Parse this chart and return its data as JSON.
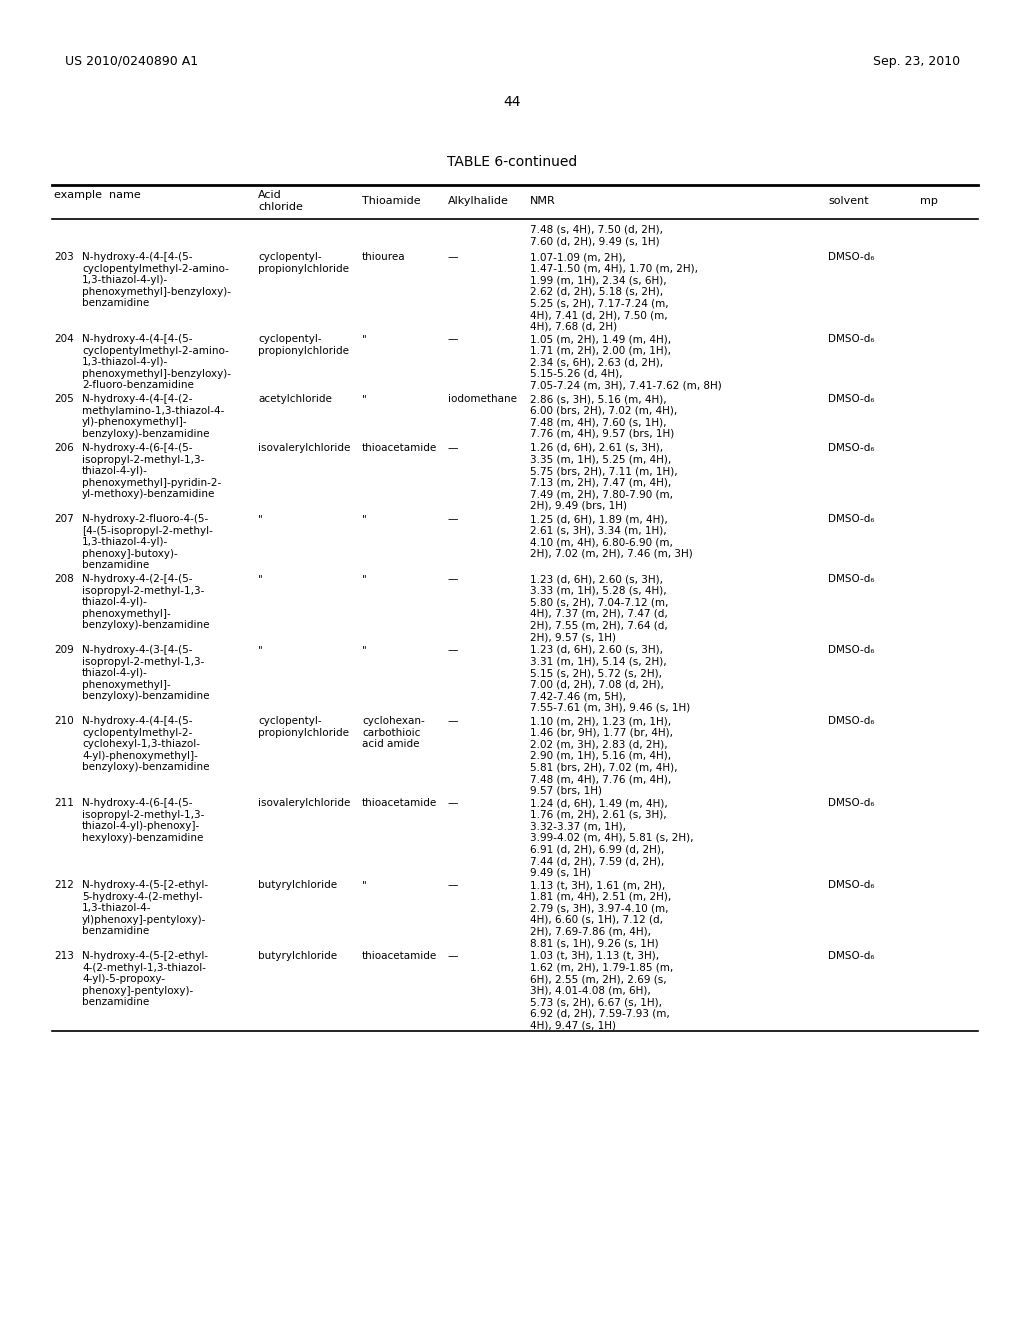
{
  "header_left": "US 2010/0240890 A1",
  "header_right": "Sep. 23, 2010",
  "page_number": "44",
  "table_title": "TABLE 6-continued",
  "bg_color": "#ffffff",
  "text_color": "#000000",
  "rows": [
    {
      "num": "",
      "name": "",
      "acid_chloride": "",
      "thioamide": "",
      "alkylhalide": "",
      "nmr": "7.48 (s, 4H), 7.50 (d, 2H),\n7.60 (d, 2H), 9.49 (s, 1H)",
      "solvent": "",
      "mp": ""
    },
    {
      "num": "203",
      "name": "N-hydroxy-4-(4-[4-(5-\ncyclopentylmethyl-2-amino-\n1,3-thiazol-4-yl)-\nphenoxymethyl]-benzyloxy)-\nbenzamidine",
      "acid_chloride": "cyclopentyl-\npropionylchloride",
      "thioamide": "thiourea",
      "alkylhalide": "—",
      "nmr": "1.07-1.09 (m, 2H),\n1.47-1.50 (m, 4H), 1.70 (m, 2H),\n1.99 (m, 1H), 2.34 (s, 6H),\n2.62 (d, 2H), 5.18 (s, 2H),\n5.25 (s, 2H), 7.17-7.24 (m,\n4H), 7.41 (d, 2H), 7.50 (m,\n4H), 7.68 (d, 2H)",
      "solvent": "DMSO-d₆",
      "mp": ""
    },
    {
      "num": "204",
      "name": "N-hydroxy-4-(4-[4-(5-\ncyclopentylmethyl-2-amino-\n1,3-thiazol-4-yl)-\nphenoxymethyl]-benzyloxy)-\n2-fluoro-benzamidine",
      "acid_chloride": "cyclopentyl-\npropionylchloride",
      "thioamide": "\"",
      "alkylhalide": "—",
      "nmr": "1.05 (m, 2H), 1.49 (m, 4H),\n1.71 (m, 2H), 2.00 (m, 1H),\n2.34 (s, 6H), 2.63 (d, 2H),\n5.15-5.26 (d, 4H),\n7.05-7.24 (m, 3H), 7.41-7.62 (m, 8H)",
      "solvent": "DMSO-d₆",
      "mp": ""
    },
    {
      "num": "205",
      "name": "N-hydroxy-4-(4-[4-(2-\nmethylamino-1,3-thiazol-4-\nyl)-phenoxymethyl]-\nbenzyloxy)-benzamidine",
      "acid_chloride": "acetylchloride",
      "thioamide": "\"",
      "alkylhalide": "iodomethane",
      "nmr": "2.86 (s, 3H), 5.16 (m, 4H),\n6.00 (brs, 2H), 7.02 (m, 4H),\n7.48 (m, 4H), 7.60 (s, 1H),\n7.76 (m, 4H), 9.57 (brs, 1H)",
      "solvent": "DMSO-d₆",
      "mp": ""
    },
    {
      "num": "206",
      "name": "N-hydroxy-4-(6-[4-(5-\nisopropyl-2-methyl-1,3-\nthiazol-4-yl)-\nphenoxymethyl]-pyridin-2-\nyl-methoxy)-benzamidine",
      "acid_chloride": "isovalerylchloride",
      "thioamide": "thioacetamide",
      "alkylhalide": "—",
      "nmr": "1.26 (d, 6H), 2.61 (s, 3H),\n3.35 (m, 1H), 5.25 (m, 4H),\n5.75 (brs, 2H), 7.11 (m, 1H),\n7.13 (m, 2H), 7.47 (m, 4H),\n7.49 (m, 2H), 7.80-7.90 (m,\n2H), 9.49 (brs, 1H)",
      "solvent": "DMSO-d₆",
      "mp": ""
    },
    {
      "num": "207",
      "name": "N-hydroxy-2-fluoro-4-(5-\n[4-(5-isopropyl-2-methyl-\n1,3-thiazol-4-yl)-\nphenoxy]-butoxy)-\nbenzamidine",
      "acid_chloride": "\"",
      "thioamide": "\"",
      "alkylhalide": "—",
      "nmr": "1.25 (d, 6H), 1.89 (m, 4H),\n2.61 (s, 3H), 3.34 (m, 1H),\n4.10 (m, 4H), 6.80-6.90 (m,\n2H), 7.02 (m, 2H), 7.46 (m, 3H)",
      "solvent": "DMSO-d₆",
      "mp": ""
    },
    {
      "num": "208",
      "name": "N-hydroxy-4-(2-[4-(5-\nisopropyl-2-methyl-1,3-\nthiazol-4-yl)-\nphenoxymethyl]-\nbenzyloxy)-benzamidine",
      "acid_chloride": "\"",
      "thioamide": "\"",
      "alkylhalide": "—",
      "nmr": "1.23 (d, 6H), 2.60 (s, 3H),\n3.33 (m, 1H), 5.28 (s, 4H),\n5.80 (s, 2H), 7.04-7.12 (m,\n4H), 7.37 (m, 2H), 7.47 (d,\n2H), 7.55 (m, 2H), 7.64 (d,\n2H), 9.57 (s, 1H)",
      "solvent": "DMSO-d₆",
      "mp": ""
    },
    {
      "num": "209",
      "name": "N-hydroxy-4-(3-[4-(5-\nisopropyl-2-methyl-1,3-\nthiazol-4-yl)-\nphenoxymethyl]-\nbenzyloxy)-benzamidine",
      "acid_chloride": "\"",
      "thioamide": "\"",
      "alkylhalide": "—",
      "nmr": "1.23 (d, 6H), 2.60 (s, 3H),\n3.31 (m, 1H), 5.14 (s, 2H),\n5.15 (s, 2H), 5.72 (s, 2H),\n7.00 (d, 2H), 7.08 (d, 2H),\n7.42-7.46 (m, 5H),\n7.55-7.61 (m, 3H), 9.46 (s, 1H)",
      "solvent": "DMSO-d₆",
      "mp": ""
    },
    {
      "num": "210",
      "name": "N-hydroxy-4-(4-[4-(5-\ncyclopentylmethyl-2-\ncyclohexyl-1,3-thiazol-\n4-yl)-phenoxymethyl]-\nbenzyloxy)-benzamidine",
      "acid_chloride": "cyclopentyl-\npropionylchloride",
      "thioamide": "cyclohexan-\ncarbothioic\nacid amide",
      "alkylhalide": "—",
      "nmr": "1.10 (m, 2H), 1.23 (m, 1H),\n1.46 (br, 9H), 1.77 (br, 4H),\n2.02 (m, 3H), 2.83 (d, 2H),\n2.90 (m, 1H), 5.16 (m, 4H),\n5.81 (brs, 2H), 7.02 (m, 4H),\n7.48 (m, 4H), 7.76 (m, 4H),\n9.57 (brs, 1H)",
      "solvent": "DMSO-d₆",
      "mp": ""
    },
    {
      "num": "211",
      "name": "N-hydroxy-4-(6-[4-(5-\nisopropyl-2-methyl-1,3-\nthiazol-4-yl)-phenoxy]-\nhexyloxy)-benzamidine",
      "acid_chloride": "isovalerylchloride",
      "thioamide": "thioacetamide",
      "alkylhalide": "—",
      "nmr": "1.24 (d, 6H), 1.49 (m, 4H),\n1.76 (m, 2H), 2.61 (s, 3H),\n3.32-3.37 (m, 1H),\n3.99-4.02 (m, 4H), 5.81 (s, 2H),\n6.91 (d, 2H), 6.99 (d, 2H),\n7.44 (d, 2H), 7.59 (d, 2H),\n9.49 (s, 1H)",
      "solvent": "DMSO-d₆",
      "mp": ""
    },
    {
      "num": "212",
      "name": "N-hydroxy-4-(5-[2-ethyl-\n5-hydroxy-4-(2-methyl-\n1,3-thiazol-4-\nyl)phenoxy]-pentyloxy)-\nbenzamidine",
      "acid_chloride": "butyrylchloride",
      "thioamide": "\"",
      "alkylhalide": "—",
      "nmr": "1.13 (t, 3H), 1.61 (m, 2H),\n1.81 (m, 4H), 2.51 (m, 2H),\n2.79 (s, 3H), 3.97-4.10 (m,\n4H), 6.60 (s, 1H), 7.12 (d,\n2H), 7.69-7.86 (m, 4H),\n8.81 (s, 1H), 9.26 (s, 1H)",
      "solvent": "DMSO-d₆",
      "mp": ""
    },
    {
      "num": "213",
      "name": "N-hydroxy-4-(5-[2-ethyl-\n4-(2-methyl-1,3-thiazol-\n4-yl)-5-propoxy-\nphenoxy]-pentyloxy)-\nbenzamidine",
      "acid_chloride": "butyrylchloride",
      "thioamide": "thioacetamide",
      "alkylhalide": "—",
      "nmr": "1.03 (t, 3H), 1.13 (t, 3H),\n1.62 (m, 2H), 1.79-1.85 (m,\n6H), 2.55 (m, 2H), 2.69 (s,\n3H), 4.01-4.08 (m, 6H),\n5.73 (s, 2H), 6.67 (s, 1H),\n6.92 (d, 2H), 7.59-7.93 (m,\n4H), 9.47 (s, 1H)",
      "solvent": "DMSO-d₆",
      "mp": ""
    }
  ]
}
